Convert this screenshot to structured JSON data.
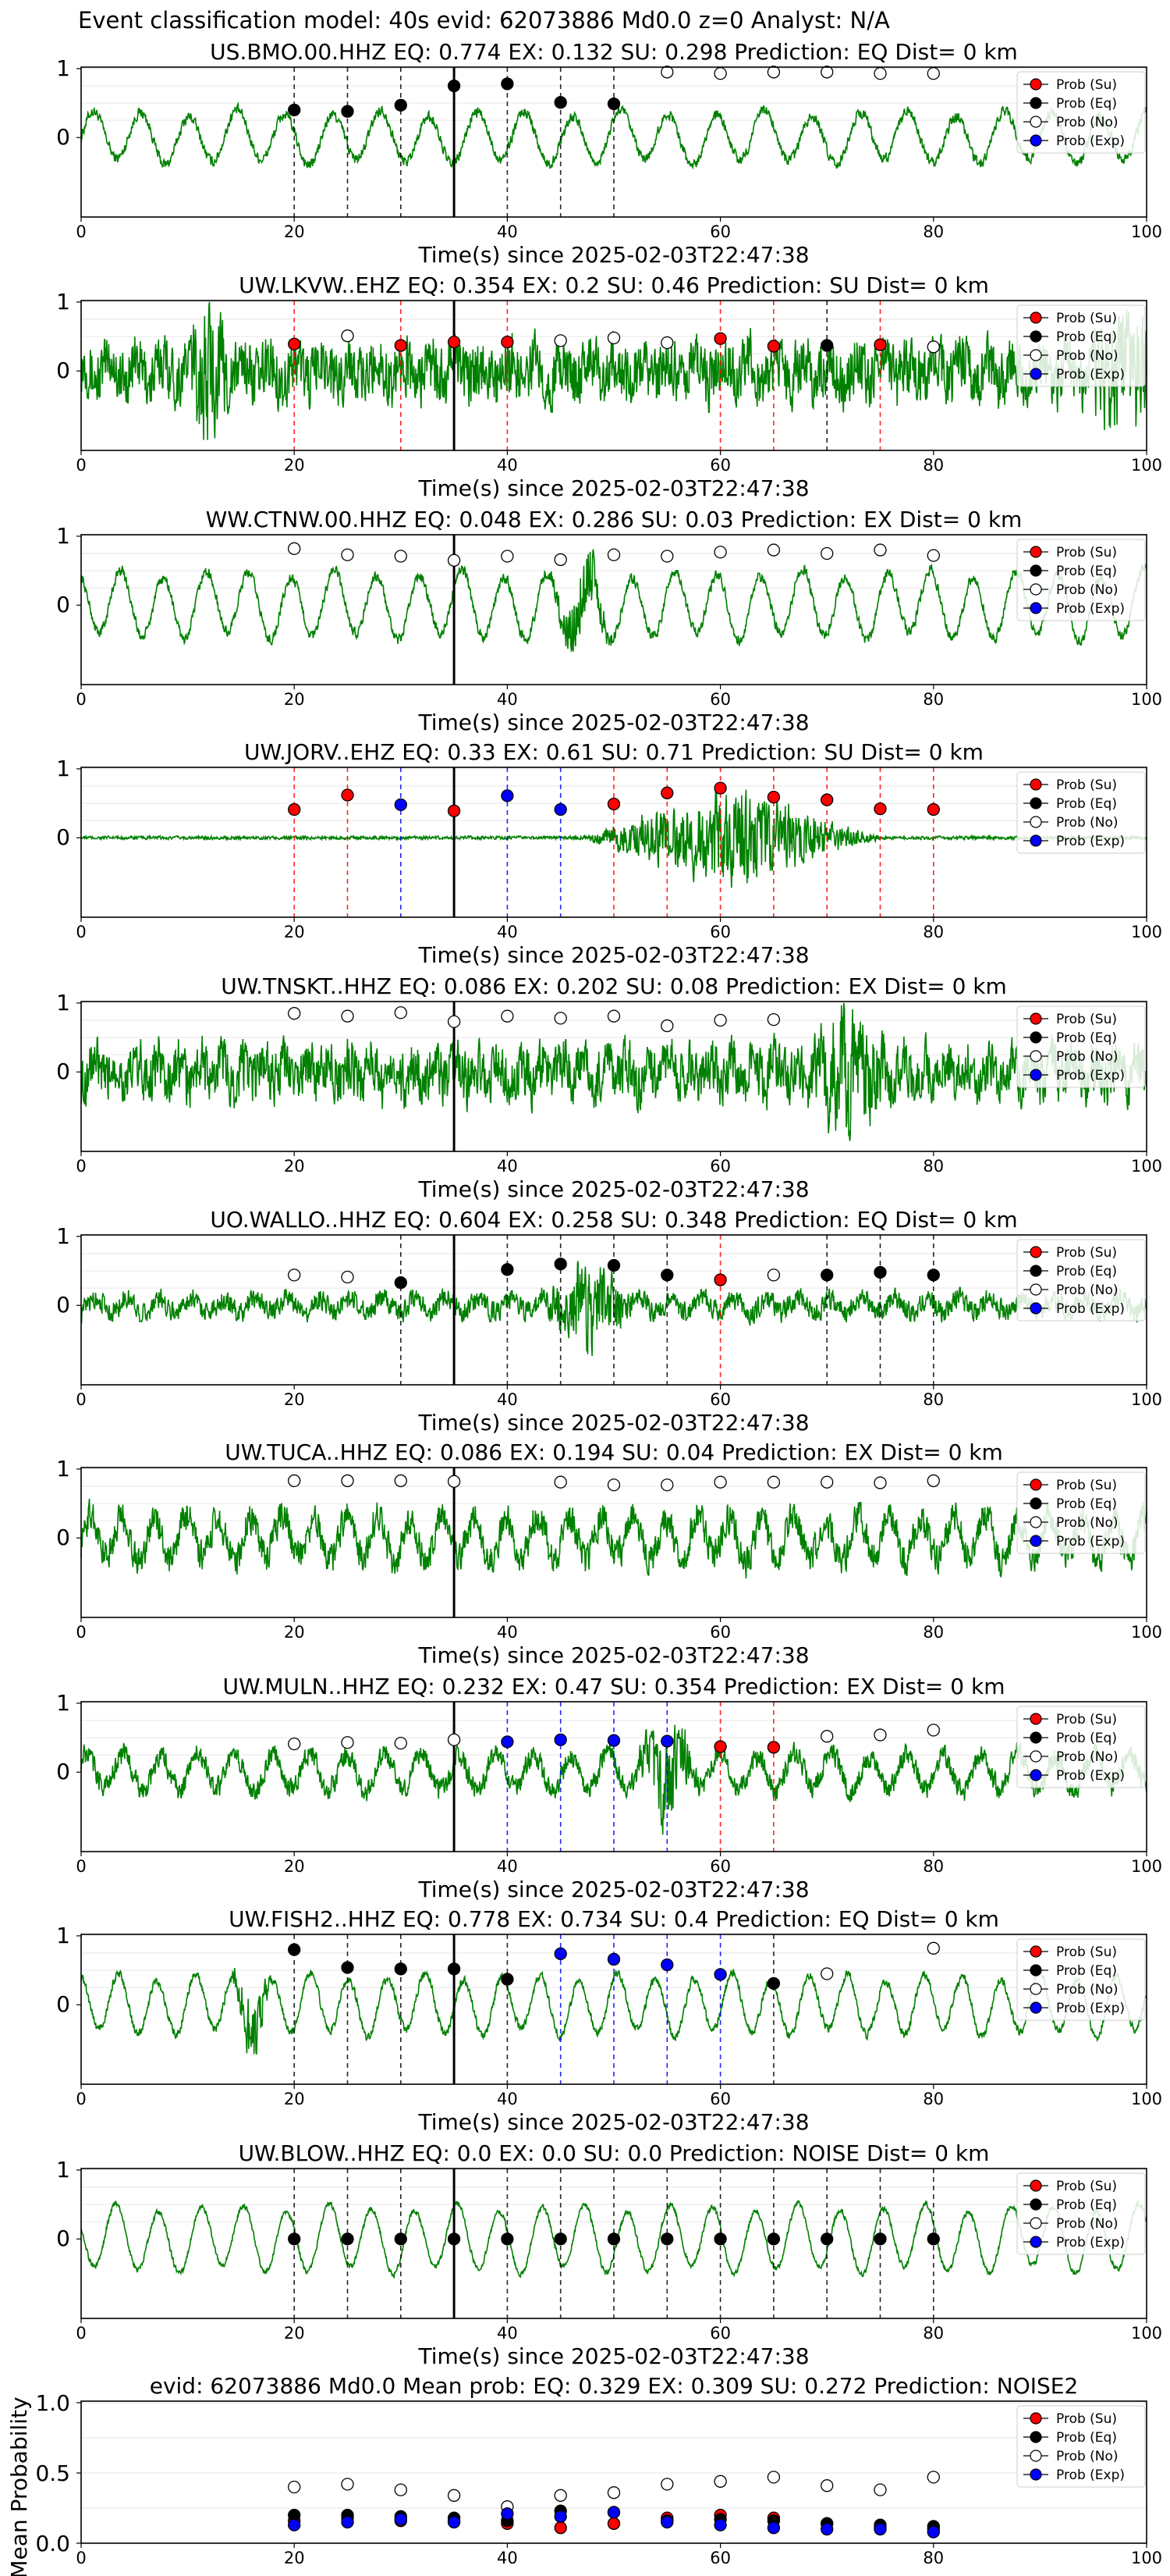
{
  "header": "Event classification model: 40s evid: 62073886 Md0.0 z=0 Analyst: N/A",
  "legend": {
    "su": "Prob (Su)",
    "eq": "Prob (Eq)",
    "no": "Prob (No)",
    "exp": "Prob (Exp)"
  },
  "colors": {
    "waveform": "#008000",
    "su": "#ff0000",
    "eq": "#000000",
    "no": "#ffffff",
    "exp": "#0000ff",
    "su_line": "#ff0000",
    "eq_line": "#000000",
    "exp_line": "#0000ff"
  },
  "chart_data": [
    {
      "type": "line",
      "title": "US.BMO.00.HHZ   EQ: 0.774  EX: 0.132  SU: 0.298   Prediction: EQ    Dist= 0 km",
      "xlabel": "Time(s) since 2025-02-03T22:47:38",
      "xlim": [
        0,
        100
      ],
      "xticks": [
        "0",
        "20",
        "40",
        "60",
        "80",
        "100"
      ],
      "yticks": [
        "1",
        "0"
      ],
      "onset": 35,
      "wave": {
        "amp": 0.35,
        "noise": 0.1,
        "period": 4.5,
        "bursts": [],
        "tail_hi": false
      },
      "points": [
        {
          "t": 20,
          "p": 0.4,
          "c": "eq"
        },
        {
          "t": 25,
          "p": 0.38,
          "c": "eq"
        },
        {
          "t": 30,
          "p": 0.47,
          "c": "eq"
        },
        {
          "t": 35,
          "p": 0.75,
          "c": "eq"
        },
        {
          "t": 40,
          "p": 0.78,
          "c": "eq"
        },
        {
          "t": 45,
          "p": 0.51,
          "c": "eq"
        },
        {
          "t": 50,
          "p": 0.49,
          "c": "eq"
        },
        {
          "t": 55,
          "p": 0.95,
          "c": "no"
        },
        {
          "t": 60,
          "p": 0.93,
          "c": "no"
        },
        {
          "t": 65,
          "p": 0.95,
          "c": "no"
        },
        {
          "t": 70,
          "p": 0.95,
          "c": "no"
        },
        {
          "t": 75,
          "p": 0.93,
          "c": "no"
        },
        {
          "t": 80,
          "p": 0.93,
          "c": "no"
        }
      ]
    },
    {
      "type": "line",
      "title": "UW.LKVW..EHZ   EQ: 0.354  EX: 0.2  SU: 0.46   Prediction: SU    Dist= 0 km",
      "xlabel": "Time(s) since 2025-02-03T22:47:38",
      "xlim": [
        0,
        100
      ],
      "xticks": [
        "0",
        "20",
        "40",
        "60",
        "80",
        "100"
      ],
      "yticks": [
        "1",
        "0"
      ],
      "onset": 35,
      "wave": {
        "amp": 0.15,
        "noise": 0.55,
        "period": 2.5,
        "bursts": [
          [
            10,
            14,
            0.9
          ]
        ],
        "tail_hi": true
      },
      "points": [
        {
          "t": 20,
          "p": 0.39,
          "c": "su"
        },
        {
          "t": 25,
          "p": 0.51,
          "c": "no"
        },
        {
          "t": 30,
          "p": 0.37,
          "c": "su"
        },
        {
          "t": 35,
          "p": 0.42,
          "c": "su"
        },
        {
          "t": 40,
          "p": 0.42,
          "c": "su"
        },
        {
          "t": 45,
          "p": 0.44,
          "c": "no"
        },
        {
          "t": 50,
          "p": 0.48,
          "c": "no"
        },
        {
          "t": 55,
          "p": 0.41,
          "c": "no"
        },
        {
          "t": 60,
          "p": 0.47,
          "c": "su"
        },
        {
          "t": 65,
          "p": 0.36,
          "c": "su"
        },
        {
          "t": 70,
          "p": 0.37,
          "c": "eq"
        },
        {
          "t": 75,
          "p": 0.38,
          "c": "su"
        },
        {
          "t": 80,
          "p": 0.35,
          "c": "no"
        }
      ]
    },
    {
      "type": "line",
      "title": "WW.CTNW.00.HHZ   EQ: 0.048  EX: 0.286  SU: 0.03   Prediction: EX    Dist= 0 km",
      "xlabel": "Time(s) since 2025-02-03T22:47:38",
      "xlim": [
        0,
        100
      ],
      "xticks": [
        "0",
        "20",
        "40",
        "60",
        "80",
        "100"
      ],
      "yticks": [
        "1",
        "0"
      ],
      "onset": 35,
      "wave": {
        "amp": 0.45,
        "noise": 0.1,
        "period": 4.0,
        "bursts": [
          [
            44,
            50,
            0.6
          ]
        ],
        "tail_hi": false
      },
      "points": [
        {
          "t": 20,
          "p": 0.82,
          "c": "no"
        },
        {
          "t": 25,
          "p": 0.73,
          "c": "no"
        },
        {
          "t": 30,
          "p": 0.71,
          "c": "no"
        },
        {
          "t": 35,
          "p": 0.65,
          "c": "no"
        },
        {
          "t": 40,
          "p": 0.71,
          "c": "no"
        },
        {
          "t": 45,
          "p": 0.66,
          "c": "no"
        },
        {
          "t": 50,
          "p": 0.73,
          "c": "no"
        },
        {
          "t": 55,
          "p": 0.71,
          "c": "no"
        },
        {
          "t": 60,
          "p": 0.77,
          "c": "no"
        },
        {
          "t": 65,
          "p": 0.8,
          "c": "no"
        },
        {
          "t": 70,
          "p": 0.75,
          "c": "no"
        },
        {
          "t": 75,
          "p": 0.8,
          "c": "no"
        },
        {
          "t": 80,
          "p": 0.72,
          "c": "no"
        }
      ]
    },
    {
      "type": "line",
      "title": "UW.JORV..EHZ   EQ: 0.33  EX: 0.61  SU: 0.71   Prediction: SU    Dist= 0 km",
      "xlabel": "Time(s) since 2025-02-03T22:47:38",
      "xlim": [
        0,
        100
      ],
      "xticks": [
        "0",
        "20",
        "40",
        "60",
        "80",
        "100"
      ],
      "yticks": [
        "1",
        "0"
      ],
      "onset": 35,
      "wave": {
        "amp": 0.0,
        "noise": 0.03,
        "period": 3.0,
        "bursts": [
          [
            47,
            75,
            0.9
          ]
        ],
        "tail_hi": false
      },
      "points": [
        {
          "t": 20,
          "p": 0.41,
          "c": "su"
        },
        {
          "t": 25,
          "p": 0.62,
          "c": "su"
        },
        {
          "t": 30,
          "p": 0.48,
          "c": "exp"
        },
        {
          "t": 35,
          "p": 0.39,
          "c": "su"
        },
        {
          "t": 40,
          "p": 0.61,
          "c": "exp"
        },
        {
          "t": 45,
          "p": 0.41,
          "c": "exp"
        },
        {
          "t": 50,
          "p": 0.49,
          "c": "su"
        },
        {
          "t": 55,
          "p": 0.65,
          "c": "su"
        },
        {
          "t": 60,
          "p": 0.72,
          "c": "su"
        },
        {
          "t": 65,
          "p": 0.59,
          "c": "su"
        },
        {
          "t": 70,
          "p": 0.55,
          "c": "su"
        },
        {
          "t": 75,
          "p": 0.42,
          "c": "su"
        },
        {
          "t": 80,
          "p": 0.41,
          "c": "su"
        }
      ]
    },
    {
      "type": "line",
      "title": "UW.TNSKT..HHZ   EQ: 0.086  EX: 0.202  SU: 0.08   Prediction: EX    Dist= 0 km",
      "xlabel": "Time(s) since 2025-02-03T22:47:38",
      "xlim": [
        0,
        100
      ],
      "xticks": [
        "0",
        "20",
        "40",
        "60",
        "80",
        "100"
      ],
      "yticks": [
        "1",
        "0"
      ],
      "onset": 35,
      "wave": {
        "amp": 0.15,
        "noise": 0.5,
        "period": 2.0,
        "bursts": [
          [
            68,
            76,
            0.85
          ]
        ],
        "tail_hi": false
      },
      "points": [
        {
          "t": 20,
          "p": 0.85,
          "c": "no"
        },
        {
          "t": 25,
          "p": 0.81,
          "c": "no"
        },
        {
          "t": 30,
          "p": 0.86,
          "c": "no"
        },
        {
          "t": 35,
          "p": 0.73,
          "c": "no"
        },
        {
          "t": 40,
          "p": 0.81,
          "c": "no"
        },
        {
          "t": 45,
          "p": 0.78,
          "c": "no"
        },
        {
          "t": 50,
          "p": 0.81,
          "c": "no"
        },
        {
          "t": 55,
          "p": 0.67,
          "c": "no"
        },
        {
          "t": 60,
          "p": 0.75,
          "c": "no"
        },
        {
          "t": 65,
          "p": 0.76,
          "c": "no"
        }
      ]
    },
    {
      "type": "line",
      "title": "UO.WALLO..HHZ   EQ: 0.604  EX: 0.258  SU: 0.348   Prediction: EQ    Dist= 0 km",
      "xlabel": "Time(s) since 2025-02-03T22:47:38",
      "xlim": [
        0,
        100
      ],
      "xticks": [
        "0",
        "20",
        "40",
        "60",
        "80",
        "100"
      ],
      "yticks": [
        "1",
        "0"
      ],
      "onset": 35,
      "wave": {
        "amp": 0.1,
        "noise": 0.2,
        "period": 3.0,
        "bursts": [
          [
            43,
            52,
            0.7
          ]
        ],
        "tail_hi": false
      },
      "points": [
        {
          "t": 20,
          "p": 0.44,
          "c": "no"
        },
        {
          "t": 25,
          "p": 0.41,
          "c": "no"
        },
        {
          "t": 30,
          "p": 0.33,
          "c": "eq"
        },
        {
          "t": 40,
          "p": 0.52,
          "c": "eq"
        },
        {
          "t": 45,
          "p": 0.6,
          "c": "eq"
        },
        {
          "t": 50,
          "p": 0.58,
          "c": "eq"
        },
        {
          "t": 55,
          "p": 0.44,
          "c": "eq"
        },
        {
          "t": 60,
          "p": 0.37,
          "c": "su"
        },
        {
          "t": 65,
          "p": 0.44,
          "c": "no"
        },
        {
          "t": 70,
          "p": 0.44,
          "c": "eq"
        },
        {
          "t": 75,
          "p": 0.48,
          "c": "eq"
        },
        {
          "t": 80,
          "p": 0.44,
          "c": "eq"
        }
      ]
    },
    {
      "type": "line",
      "title": "UW.TUCA..HHZ   EQ: 0.086  EX: 0.194  SU: 0.04   Prediction: EX    Dist= 0 km",
      "xlabel": "Time(s) since 2025-02-03T22:47:38",
      "xlim": [
        0,
        100
      ],
      "xticks": [
        "0",
        "20",
        "40",
        "60",
        "80",
        "100"
      ],
      "yticks": [
        "1",
        "0"
      ],
      "onset": 35,
      "wave": {
        "amp": 0.3,
        "noise": 0.3,
        "period": 3.0,
        "bursts": [],
        "tail_hi": false
      },
      "points": [
        {
          "t": 20,
          "p": 0.83,
          "c": "no"
        },
        {
          "t": 25,
          "p": 0.83,
          "c": "no"
        },
        {
          "t": 30,
          "p": 0.83,
          "c": "no"
        },
        {
          "t": 35,
          "p": 0.82,
          "c": "no"
        },
        {
          "t": 45,
          "p": 0.81,
          "c": "no"
        },
        {
          "t": 50,
          "p": 0.77,
          "c": "no"
        },
        {
          "t": 55,
          "p": 0.77,
          "c": "no"
        },
        {
          "t": 60,
          "p": 0.81,
          "c": "no"
        },
        {
          "t": 65,
          "p": 0.81,
          "c": "no"
        },
        {
          "t": 70,
          "p": 0.81,
          "c": "no"
        },
        {
          "t": 75,
          "p": 0.8,
          "c": "no"
        },
        {
          "t": 80,
          "p": 0.83,
          "c": "no"
        }
      ]
    },
    {
      "type": "line",
      "title": "UW.MULN..HHZ   EQ: 0.232  EX: 0.47  SU: 0.354   Prediction: EX    Dist= 0 km",
      "xlabel": "Time(s) since 2025-02-03T22:47:38",
      "xlim": [
        0,
        100
      ],
      "xticks": [
        "0",
        "20",
        "40",
        "60",
        "80",
        "100"
      ],
      "yticks": [
        "1",
        "0"
      ],
      "onset": 35,
      "wave": {
        "amp": 0.25,
        "noise": 0.2,
        "period": 3.5,
        "bursts": [
          [
            52,
            58,
            0.75
          ]
        ],
        "tail_hi": false
      },
      "points": [
        {
          "t": 20,
          "p": 0.41,
          "c": "no"
        },
        {
          "t": 25,
          "p": 0.43,
          "c": "no"
        },
        {
          "t": 30,
          "p": 0.42,
          "c": "no"
        },
        {
          "t": 35,
          "p": 0.47,
          "c": "no"
        },
        {
          "t": 40,
          "p": 0.44,
          "c": "exp"
        },
        {
          "t": 45,
          "p": 0.47,
          "c": "exp"
        },
        {
          "t": 50,
          "p": 0.46,
          "c": "exp"
        },
        {
          "t": 55,
          "p": 0.45,
          "c": "exp"
        },
        {
          "t": 60,
          "p": 0.37,
          "c": "su"
        },
        {
          "t": 65,
          "p": 0.36,
          "c": "su"
        },
        {
          "t": 70,
          "p": 0.52,
          "c": "no"
        },
        {
          "t": 75,
          "p": 0.54,
          "c": "no"
        },
        {
          "t": 80,
          "p": 0.61,
          "c": "no"
        }
      ]
    },
    {
      "type": "line",
      "title": "UW.FISH2..HHZ   EQ: 0.778  EX: 0.734  SU: 0.4   Prediction: EQ    Dist= 0 km",
      "xlabel": "Time(s) since 2025-02-03T22:47:38",
      "xlim": [
        0,
        100
      ],
      "xticks": [
        "0",
        "20",
        "40",
        "60",
        "80",
        "100"
      ],
      "yticks": [
        "1",
        "0"
      ],
      "onset": 35,
      "wave": {
        "amp": 0.4,
        "noise": 0.08,
        "period": 3.6,
        "bursts": [
          [
            14,
            18,
            0.6
          ]
        ],
        "tail_hi": false
      },
      "points": [
        {
          "t": 20,
          "p": 0.8,
          "c": "eq"
        },
        {
          "t": 25,
          "p": 0.54,
          "c": "eq"
        },
        {
          "t": 30,
          "p": 0.52,
          "c": "eq"
        },
        {
          "t": 35,
          "p": 0.52,
          "c": "eq"
        },
        {
          "t": 40,
          "p": 0.37,
          "c": "eq"
        },
        {
          "t": 45,
          "p": 0.74,
          "c": "exp"
        },
        {
          "t": 50,
          "p": 0.66,
          "c": "exp"
        },
        {
          "t": 55,
          "p": 0.58,
          "c": "exp"
        },
        {
          "t": 60,
          "p": 0.44,
          "c": "exp"
        },
        {
          "t": 65,
          "p": 0.31,
          "c": "eq"
        },
        {
          "t": 70,
          "p": 0.45,
          "c": "no"
        },
        {
          "t": 80,
          "p": 0.82,
          "c": "no"
        }
      ]
    },
    {
      "type": "line",
      "title": "UW.BLOW..HHZ   EQ: 0.0  EX: 0.0  SU: 0.0   Prediction: NOISE    Dist= 0 km",
      "xlabel": "Time(s) since 2025-02-03T22:47:38",
      "xlim": [
        0,
        100
      ],
      "xticks": [
        "0",
        "20",
        "40",
        "60",
        "80",
        "100"
      ],
      "yticks": [
        "1",
        "0"
      ],
      "onset": 35,
      "wave": {
        "amp": 0.45,
        "noise": 0.05,
        "period": 4.0,
        "bursts": [],
        "tail_hi": false
      },
      "points": [
        {
          "t": 20,
          "p": 0.0,
          "c": "eq"
        },
        {
          "t": 25,
          "p": 0.0,
          "c": "eq"
        },
        {
          "t": 30,
          "p": 0.0,
          "c": "eq"
        },
        {
          "t": 35,
          "p": 0.0,
          "c": "eq"
        },
        {
          "t": 40,
          "p": 0.0,
          "c": "eq"
        },
        {
          "t": 45,
          "p": 0.0,
          "c": "eq"
        },
        {
          "t": 50,
          "p": 0.0,
          "c": "eq"
        },
        {
          "t": 55,
          "p": 0.0,
          "c": "eq"
        },
        {
          "t": 60,
          "p": 0.0,
          "c": "eq"
        },
        {
          "t": 65,
          "p": 0.0,
          "c": "eq"
        },
        {
          "t": 70,
          "p": 0.0,
          "c": "eq"
        },
        {
          "t": 75,
          "p": 0.0,
          "c": "eq"
        },
        {
          "t": 80,
          "p": 0.0,
          "c": "eq"
        }
      ]
    },
    {
      "type": "scatter",
      "title": "evid: 62073886  Md0.0   Mean prob:   EQ: 0.329  EX: 0.309  SU: 0.272   Prediction: NOISE2",
      "xlabel": "",
      "ylabel": "Mean Probability",
      "xlim": [
        0,
        100
      ],
      "ylim": [
        0,
        1
      ],
      "xticks": [
        "0",
        "20",
        "40",
        "60",
        "80",
        "100"
      ],
      "yticks": [
        "1.0",
        "0.5",
        "0.0"
      ],
      "x": [
        20,
        25,
        30,
        35,
        40,
        45,
        50,
        55,
        60,
        65,
        70,
        75,
        80
      ],
      "series": [
        {
          "name": "Prob (Su)",
          "key": "su",
          "values": [
            0.16,
            0.18,
            0.16,
            0.16,
            0.14,
            0.11,
            0.14,
            0.18,
            0.2,
            0.18,
            0.14,
            0.11,
            0.1
          ]
        },
        {
          "name": "Prob (Eq)",
          "key": "eq",
          "values": [
            0.2,
            0.2,
            0.19,
            0.18,
            0.16,
            0.23,
            0.22,
            0.16,
            0.17,
            0.16,
            0.14,
            0.13,
            0.12
          ]
        },
        {
          "name": "Prob (No)",
          "key": "no",
          "values": [
            0.4,
            0.42,
            0.38,
            0.34,
            0.26,
            0.34,
            0.36,
            0.42,
            0.44,
            0.47,
            0.41,
            0.38,
            0.47
          ]
        },
        {
          "name": "Prob (Exp)",
          "key": "exp",
          "values": [
            0.13,
            0.15,
            0.17,
            0.15,
            0.21,
            0.19,
            0.22,
            0.15,
            0.13,
            0.11,
            0.1,
            0.1,
            0.08
          ]
        }
      ]
    }
  ]
}
